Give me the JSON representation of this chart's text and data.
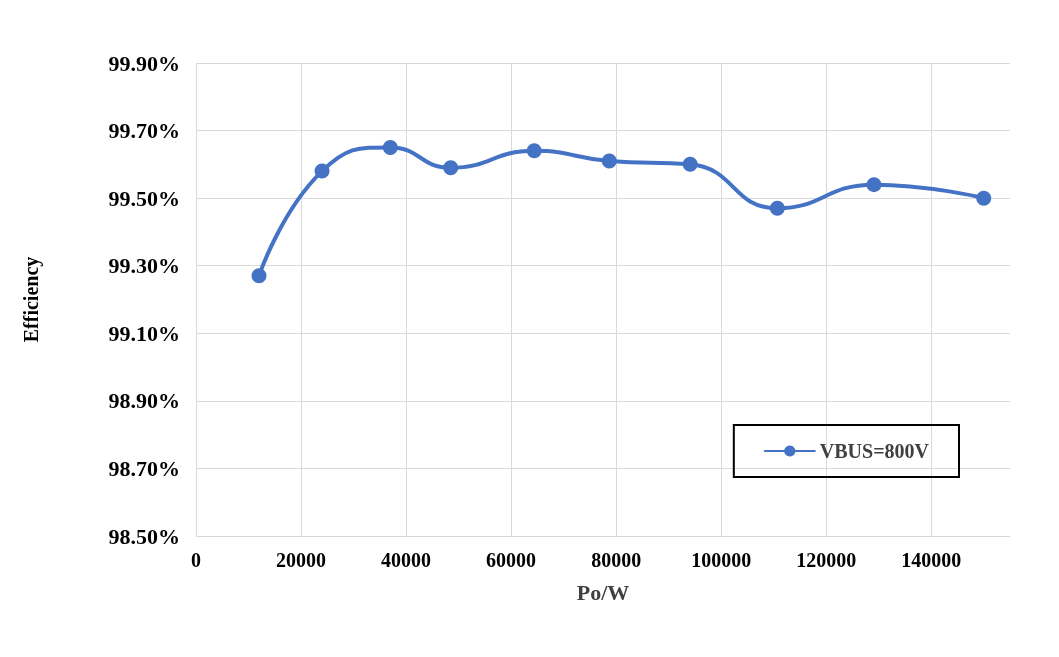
{
  "chart_data": {
    "type": "line",
    "xlabel": "Po/W",
    "ylabel": "Efficiency",
    "x": [
      12000,
      24000,
      37000,
      48500,
      64400,
      78700,
      94100,
      110700,
      129100,
      150000
    ],
    "series": [
      {
        "name": "VBUS=800V",
        "color": "#4472c4",
        "values": [
          99.27,
          99.58,
          99.65,
          99.59,
          99.64,
          99.61,
          99.6,
          99.47,
          99.54,
          99.5
        ]
      }
    ],
    "xlim": [
      0,
      155000
    ],
    "xticks": [
      0,
      20000,
      40000,
      60000,
      80000,
      100000,
      120000,
      140000
    ],
    "ylim": [
      98.5,
      99.9
    ],
    "yticks": [
      {
        "value": 98.5,
        "label": "98.50%"
      },
      {
        "value": 98.7,
        "label": "98.70%"
      },
      {
        "value": 98.9,
        "label": "98.90%"
      },
      {
        "value": 99.1,
        "label": "99.10%"
      },
      {
        "value": 99.3,
        "label": "99.30%"
      },
      {
        "value": 99.5,
        "label": "99.50%"
      },
      {
        "value": 99.7,
        "label": "99.70%"
      },
      {
        "value": 99.9,
        "label": "99.90%"
      }
    ],
    "grid": true,
    "legend": "bottom right",
    "marker": "circle",
    "line_style": "solid"
  }
}
